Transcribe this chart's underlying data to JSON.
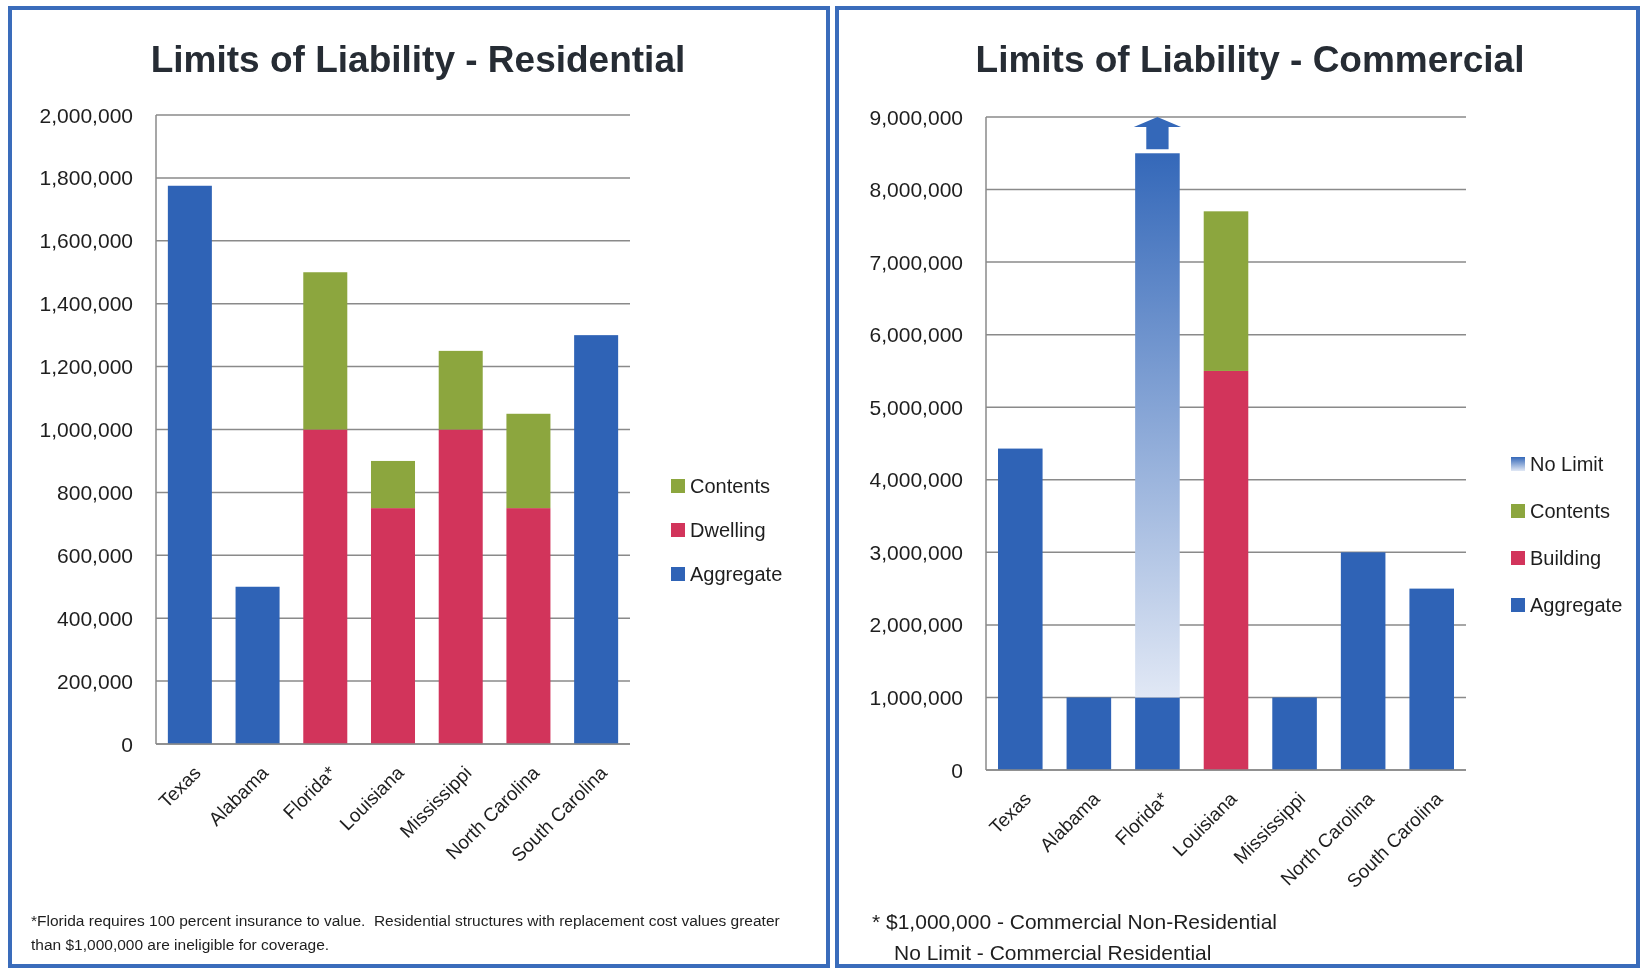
{
  "chart_data": [
    {
      "type": "bar",
      "title": "Limits of Liability - Residential",
      "categories": [
        "Texas",
        "Alabama",
        "Florida*",
        "Louisiana",
        "Mississippi",
        "North Carolina",
        "South Carolina"
      ],
      "stacked": true,
      "series": [
        {
          "name": "Aggregate",
          "color": "#2f63b6",
          "values": [
            1775000,
            500000,
            null,
            null,
            null,
            null,
            1300000
          ]
        },
        {
          "name": "Dwelling",
          "color": "#d2345b",
          "values": [
            null,
            null,
            1000000,
            750000,
            1000000,
            750000,
            null
          ]
        },
        {
          "name": "Contents",
          "color": "#8ca63e",
          "values": [
            null,
            null,
            500000,
            150000,
            250000,
            300000,
            null
          ]
        }
      ],
      "ylim": [
        0,
        2000000
      ],
      "yticks": [
        0,
        {
          "value": 200000,
          "label": "200,000"
        },
        {
          "value": 400000,
          "label": "400,000"
        },
        {
          "value": 600000,
          "label": "600,000"
        },
        {
          "value": 800000,
          "label": "800,000"
        },
        {
          "value": 1000000,
          "label": "1,000,000"
        },
        {
          "value": 1200000,
          "label": "1,200,000"
        },
        {
          "value": 1400000,
          "label": "1,400,000"
        },
        {
          "value": 1600000,
          "label": "1,600,000"
        },
        {
          "value": 1800000,
          "label": "1,800,000"
        },
        {
          "value": 2000000,
          "label": "2,000,000"
        }
      ],
      "grid": "y",
      "legend": "right",
      "annotations": [
        "*Florida requires 100 percent insurance to value.  Residential structures with replacement cost values greater than $1,000,000 are ineligible for coverage."
      ]
    },
    {
      "type": "bar",
      "title": "Limits of Liability - Commercial",
      "categories": [
        "Texas",
        "Alabama",
        "Florida*",
        "Louisiana",
        "Mississippi",
        "North Carolina",
        "South Carolina"
      ],
      "stacked": true,
      "series": [
        {
          "name": "Aggregate",
          "color": "#2f63b6",
          "values": [
            4430000,
            1000000,
            1000000,
            null,
            1000000,
            3000000,
            2500000
          ]
        },
        {
          "name": "Building",
          "color": "#d2345b",
          "values": [
            null,
            null,
            null,
            5500000,
            null,
            null,
            null
          ]
        },
        {
          "name": "Contents",
          "color": "#8ca63e",
          "values": [
            null,
            null,
            null,
            2200000,
            null,
            null,
            null
          ]
        },
        {
          "name": "No Limit",
          "color": "#3468b9",
          "values": [
            null,
            null,
            7500000,
            null,
            null,
            null,
            null
          ]
        }
      ],
      "ylim": [
        0,
        9000000
      ],
      "yticks": [
        0,
        {
          "value": 1000000,
          "label": "1,000,000"
        },
        {
          "value": 2000000,
          "label": "2,000,000"
        },
        {
          "value": 3000000,
          "label": "3,000,000"
        },
        {
          "value": 4000000,
          "label": "4,000,000"
        },
        {
          "value": 5000000,
          "label": "5,000,000"
        },
        {
          "value": 6000000,
          "label": "6,000,000"
        },
        {
          "value": 7000000,
          "label": "7,000,000"
        },
        {
          "value": 8000000,
          "label": "8,000,000"
        },
        {
          "value": 9000000,
          "label": "9,000,000"
        }
      ],
      "grid": "y",
      "legend": "right",
      "annotations": [
        "* $1,000,000 - Commercial Non-Residential",
        "No Limit - Commercial Residential"
      ]
    }
  ]
}
